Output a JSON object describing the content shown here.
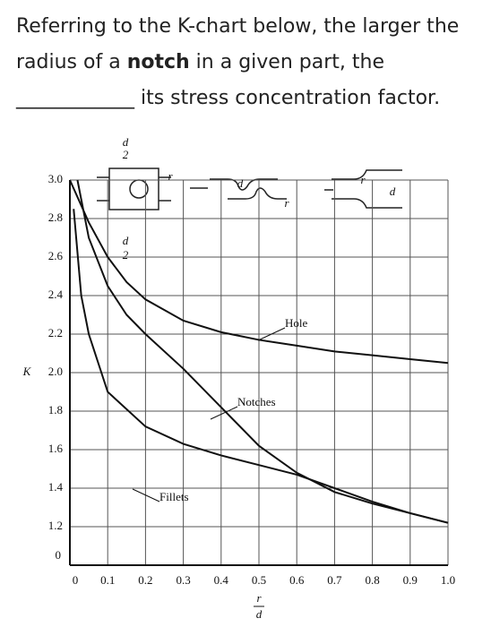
{
  "question": {
    "line1": "Referring to the K-chart below, the larger the",
    "line2a": "radius of a ",
    "line2b": "notch",
    "line2c": " in a given part, the",
    "blank": "____________",
    "line3": " its stress concentration factor."
  },
  "chart_data": {
    "type": "line",
    "ylabel": "K",
    "xlabel_num": "r",
    "xlabel_den": "d",
    "origin_label": "0",
    "xlim": [
      0,
      1
    ],
    "xticks": [
      0,
      0.1,
      0.2,
      0.3,
      0.4,
      0.5,
      0.6,
      0.7,
      0.8,
      0.9,
      {
        "value": 1,
        "label": "1.0"
      }
    ],
    "ylim": [
      1,
      3
    ],
    "yticks": [
      1.2,
      1.4,
      1.6,
      1.8,
      {
        "value": 2,
        "label": "2.0"
      },
      2.2,
      2.4,
      2.6,
      2.8,
      {
        "value": 3,
        "label": "3.0"
      }
    ],
    "grid": true,
    "series": [
      {
        "name": "Hole",
        "color": "#111",
        "x": [
          0,
          0.05,
          0.1,
          0.15,
          0.2,
          0.3,
          0.4,
          0.5,
          0.6,
          0.7,
          0.8,
          0.9,
          1
        ],
        "values": [
          3.0,
          2.78,
          2.6,
          2.47,
          2.38,
          2.27,
          2.21,
          2.17,
          2.14,
          2.11,
          2.09,
          2.07,
          2.05
        ]
      },
      {
        "name": "Notches",
        "color": "#111",
        "x": [
          0.02,
          0.05,
          0.1,
          0.15,
          0.2,
          0.3,
          0.4,
          0.5,
          0.6,
          0.7,
          0.8,
          0.9,
          1
        ],
        "values": [
          3.0,
          2.7,
          2.45,
          2.3,
          2.2,
          2.02,
          1.82,
          1.62,
          1.48,
          1.38,
          1.32,
          1.27,
          1.22
        ]
      },
      {
        "name": "Fillets",
        "color": "#111",
        "x": [
          0.01,
          0.03,
          0.05,
          0.1,
          0.2,
          0.3,
          0.4,
          0.5,
          0.6,
          0.7,
          0.8,
          0.9,
          1
        ],
        "values": [
          2.85,
          2.4,
          2.2,
          1.9,
          1.72,
          1.63,
          1.57,
          1.52,
          1.47,
          1.4,
          1.33,
          1.27,
          1.22
        ]
      }
    ],
    "icon_labels": [
      "d",
      "2",
      "d",
      "2",
      "r",
      "d",
      "r",
      "r",
      "d"
    ]
  }
}
